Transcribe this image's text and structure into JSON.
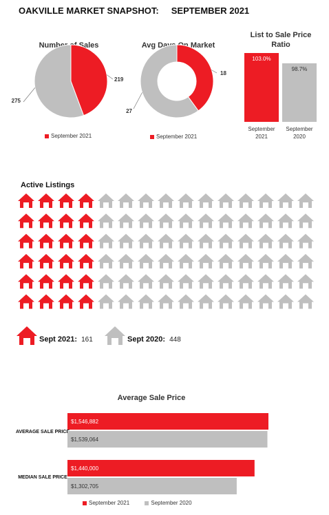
{
  "page": {
    "title": "OAKVILLE MARKET SNAPSHOT:     SEPTEMBER 2021"
  },
  "colors": {
    "current": "#ed1c24",
    "previous": "#bfbfbf"
  },
  "chart_data": [
    {
      "type": "pie",
      "title": "Number of Sales",
      "slices": [
        {
          "label": "219",
          "value": 219
        },
        {
          "label": "275",
          "value": 275
        }
      ],
      "legend": [
        "September 2021"
      ]
    },
    {
      "type": "pie",
      "title": "Avg Days On Market",
      "slices": [
        {
          "label": "18",
          "value": 18
        },
        {
          "label": "27",
          "value": 27
        }
      ],
      "legend": [
        "September 2021"
      ]
    },
    {
      "type": "bar",
      "title": "List to Sale Price Ratio",
      "categories": [
        "September 2021",
        "September 2020"
      ],
      "values": [
        103.0,
        98.7
      ],
      "data_labels": [
        "103.0%",
        "98.7%"
      ]
    },
    {
      "type": "table",
      "title": "Active Listings",
      "rows": 6,
      "columns": 15,
      "red_columns": 4,
      "legend": [
        {
          "label": "Sept 2021:",
          "value": "161"
        },
        {
          "label": "Sept 2020:",
          "value": "448"
        }
      ]
    },
    {
      "type": "bar",
      "title": "Average Sale Price",
      "categories": [
        "AVERAGE SALE PRICE",
        "MEDIAN SALE PRICE"
      ],
      "series": [
        {
          "name": "September 2021",
          "values": [
            1546882,
            1440000
          ],
          "labels": [
            "$1,546,882",
            "$1,440,000"
          ]
        },
        {
          "name": "September 2020",
          "values": [
            1539064,
            1302705
          ],
          "labels": [
            "$1,539,064",
            "$1,302,705"
          ]
        }
      ],
      "xlim": [
        0,
        1900000
      ]
    }
  ]
}
